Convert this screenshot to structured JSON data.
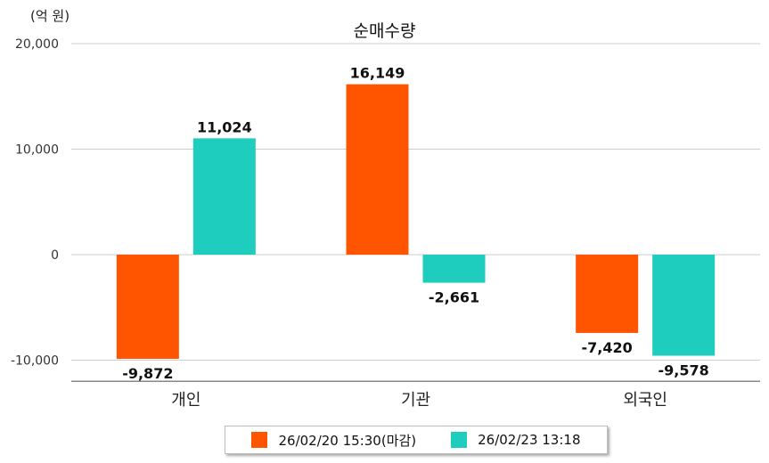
{
  "chart_data": {
    "type": "bar",
    "title": "순매수량",
    "unit_label": "(억 원)",
    "categories": [
      "개인",
      "기관",
      "외국인"
    ],
    "series": [
      {
        "name": "26/02/20 15:30(마감)",
        "color": "#FF5400",
        "values": [
          -9872,
          16149,
          -7420
        ]
      },
      {
        "name": "26/02/23 13:18",
        "color": "#1ECDBD",
        "values": [
          11024,
          -2661,
          -9578
        ]
      }
    ],
    "yticks": [
      20000,
      10000,
      0,
      -10000
    ],
    "ytick_labels": [
      "20,000",
      "10,000",
      "0",
      "-10,000"
    ],
    "ylim": [
      -12000,
      20000
    ],
    "data_labels": [
      [
        "-9,872",
        "16,149",
        "-7,420"
      ],
      [
        "11,024",
        "-2,661",
        "-9,578"
      ]
    ],
    "grid": true,
    "legend_position": "bottom"
  }
}
